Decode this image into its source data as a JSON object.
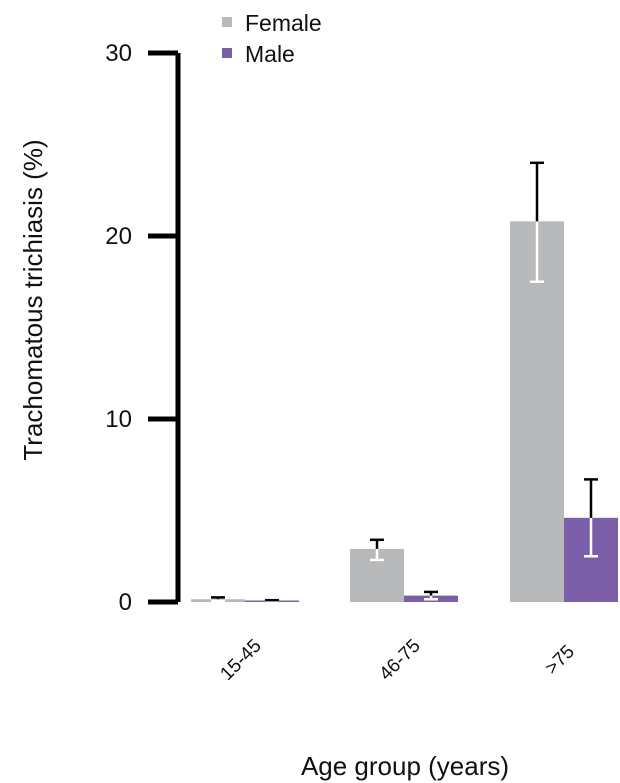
{
  "chart_data": {
    "type": "bar",
    "title": "",
    "xlabel": "Age group (years)",
    "ylabel": "Trachomatous trichiasis (%)",
    "ylim": [
      0,
      30
    ],
    "yticks": [
      "0",
      "10",
      "20",
      "30"
    ],
    "categories": [
      "15-45",
      "46-75",
      ">75"
    ],
    "series": [
      {
        "name": "Female",
        "color": "#b7b9ba",
        "values": [
          0.15,
          2.9,
          20.8
        ],
        "error_lower": [
          0.05,
          2.3,
          17.5
        ],
        "error_upper": [
          0.25,
          3.4,
          24.0
        ]
      },
      {
        "name": "Male",
        "color": "#7b5ea8",
        "values": [
          0.05,
          0.35,
          4.6
        ],
        "error_lower": [
          0.0,
          0.15,
          2.5
        ],
        "error_upper": [
          0.1,
          0.55,
          6.7
        ]
      }
    ],
    "legend": "top-left",
    "grid": false
  }
}
